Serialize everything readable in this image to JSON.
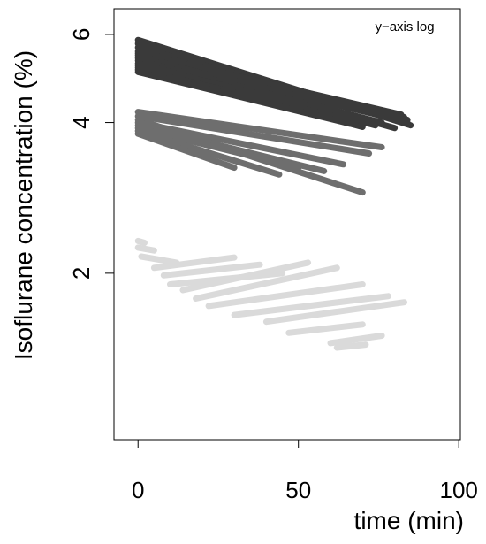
{
  "chart_data": {
    "type": "scatter",
    "title": "",
    "annotation": "y−axis log",
    "xlabel": "time (min)",
    "ylabel": "Isoflurane  concentration (%)",
    "xlim": [
      -7.5,
      100.5
    ],
    "ylim": [
      0.93,
      6.75
    ],
    "y_scale": "log",
    "x_ticks": [
      0,
      50,
      100
    ],
    "x_tick_labels": [
      "0",
      "50",
      "100"
    ],
    "y_ticks": [
      2,
      4,
      6
    ],
    "y_tick_labels": [
      "2",
      "4",
      "6"
    ],
    "grid": false,
    "legend": "none",
    "series_colors": [
      "#3a3a3a",
      "#6e6e6e",
      "#dadada"
    ],
    "groups": [
      {
        "color": "#3a3a3a",
        "segments": [
          [
            [
              0,
              5.85
            ],
            [
              85,
              3.95
            ]
          ],
          [
            [
              0,
              5.75
            ],
            [
              84,
              4.0
            ]
          ],
          [
            [
              0,
              5.65
            ],
            [
              84,
              4.05
            ]
          ],
          [
            [
              0,
              5.55
            ],
            [
              83,
              4.1
            ]
          ],
          [
            [
              0,
              5.5
            ],
            [
              82,
              4.15
            ]
          ],
          [
            [
              0,
              5.45
            ],
            [
              80,
              3.9
            ]
          ],
          [
            [
              0,
              5.38
            ],
            [
              78,
              4.1
            ]
          ],
          [
            [
              0,
              5.32
            ],
            [
              76,
              4.0
            ]
          ],
          [
            [
              0,
              5.25
            ],
            [
              74,
              3.95
            ]
          ],
          [
            [
              0,
              5.2
            ],
            [
              72,
              4.05
            ]
          ],
          [
            [
              0,
              5.15
            ],
            [
              70,
              3.92
            ]
          ],
          [
            [
              0,
              5.1
            ],
            [
              68,
              4.02
            ]
          ],
          [
            [
              0,
              5.05
            ],
            [
              66,
              3.98
            ]
          ]
        ]
      },
      {
        "color": "#6e6e6e",
        "segments": [
          [
            [
              0,
              4.2
            ],
            [
              76,
              3.57
            ]
          ],
          [
            [
              0,
              4.12
            ],
            [
              72,
              3.47
            ]
          ],
          [
            [
              0,
              4.05
            ],
            [
              70,
              2.9
            ]
          ],
          [
            [
              0,
              4.0
            ],
            [
              64,
              3.3
            ]
          ],
          [
            [
              0,
              3.95
            ],
            [
              58,
              3.2
            ]
          ],
          [
            [
              0,
              3.9
            ],
            [
              50,
              3.25
            ]
          ],
          [
            [
              0,
              3.85
            ],
            [
              44,
              3.15
            ]
          ],
          [
            [
              0,
              3.8
            ],
            [
              30,
              3.25
            ]
          ]
        ]
      },
      {
        "color": "#dadada",
        "segments": [
          [
            [
              0,
              2.32
            ],
            [
              2,
              2.3
            ]
          ],
          [
            [
              0,
              2.25
            ],
            [
              5,
              2.22
            ]
          ],
          [
            [
              1,
              2.16
            ],
            [
              12,
              2.1
            ]
          ],
          [
            [
              5,
              2.05
            ],
            [
              30,
              2.15
            ]
          ],
          [
            [
              8,
              1.98
            ],
            [
              38,
              2.08
            ]
          ],
          [
            [
              10,
              1.9
            ],
            [
              45,
              2.0
            ]
          ],
          [
            [
              14,
              1.85
            ],
            [
              53,
              2.1
            ]
          ],
          [
            [
              18,
              1.78
            ],
            [
              62,
              2.05
            ]
          ],
          [
            [
              22,
              1.72
            ],
            [
              70,
              1.9
            ]
          ],
          [
            [
              30,
              1.65
            ],
            [
              78,
              1.8
            ]
          ],
          [
            [
              40,
              1.6
            ],
            [
              83,
              1.75
            ]
          ],
          [
            [
              47,
              1.52
            ],
            [
              70,
              1.58
            ]
          ],
          [
            [
              60,
              1.45
            ],
            [
              76,
              1.5
            ]
          ],
          [
            [
              62,
              1.42
            ],
            [
              71,
              1.44
            ]
          ]
        ]
      }
    ]
  }
}
